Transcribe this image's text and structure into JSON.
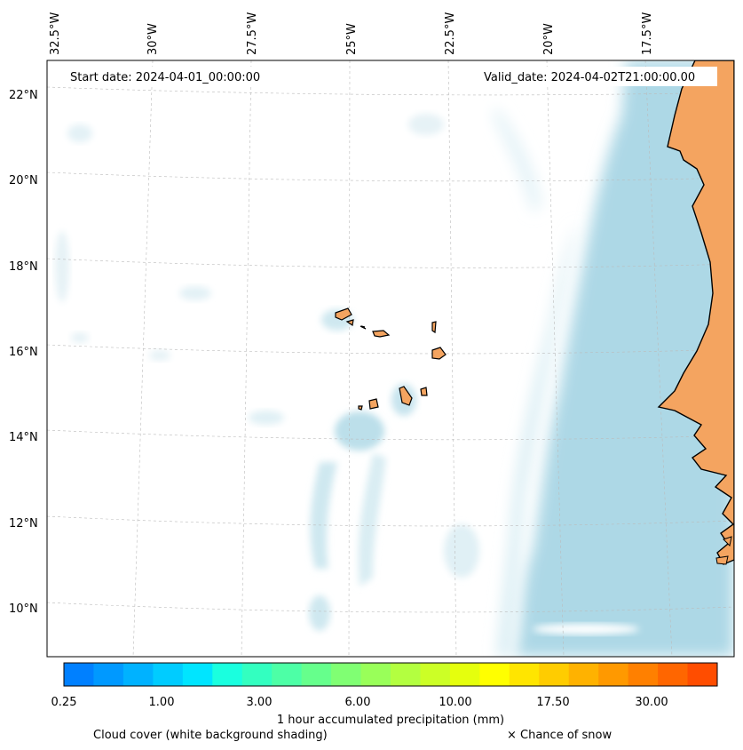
{
  "map": {
    "start_date_label": "Start date: 2024-04-01_00:00:00",
    "valid_date_label": "Valid_date: 2024-04-02T21:00:00.00",
    "lon_labels": [
      "32.5°W",
      "30°W",
      "27.5°W",
      "25°W",
      "22.5°W",
      "20°W",
      "17.5°W"
    ],
    "lat_labels": [
      "22°N",
      "20°N",
      "18°N",
      "16°N",
      "14°N",
      "12°N",
      "10°N"
    ],
    "land_color": "#f4a460",
    "ocean_cloud_color": "#add8e6"
  },
  "colorbar": {
    "title": "1 hour accumulated precipitation (mm)",
    "tick_labels": [
      "0.25",
      "1.00",
      "3.00",
      "6.00",
      "10.00",
      "17.50",
      "30.00"
    ],
    "colors": [
      "#0080ff",
      "#0099ff",
      "#00b2ff",
      "#00ccff",
      "#00e5ff",
      "#1affdf",
      "#33ffc0",
      "#4dffa6",
      "#66ff8c",
      "#80ff73",
      "#99ff59",
      "#b3ff40",
      "#ccff26",
      "#e5ff0d",
      "#ffff00",
      "#ffe500",
      "#ffcc00",
      "#ffb200",
      "#ff9900",
      "#ff8000",
      "#ff6600",
      "#ff4d00"
    ]
  },
  "legend": {
    "cloud_cover_label": "Cloud cover (white background shading)",
    "snow_label": "× Chance of snow"
  }
}
